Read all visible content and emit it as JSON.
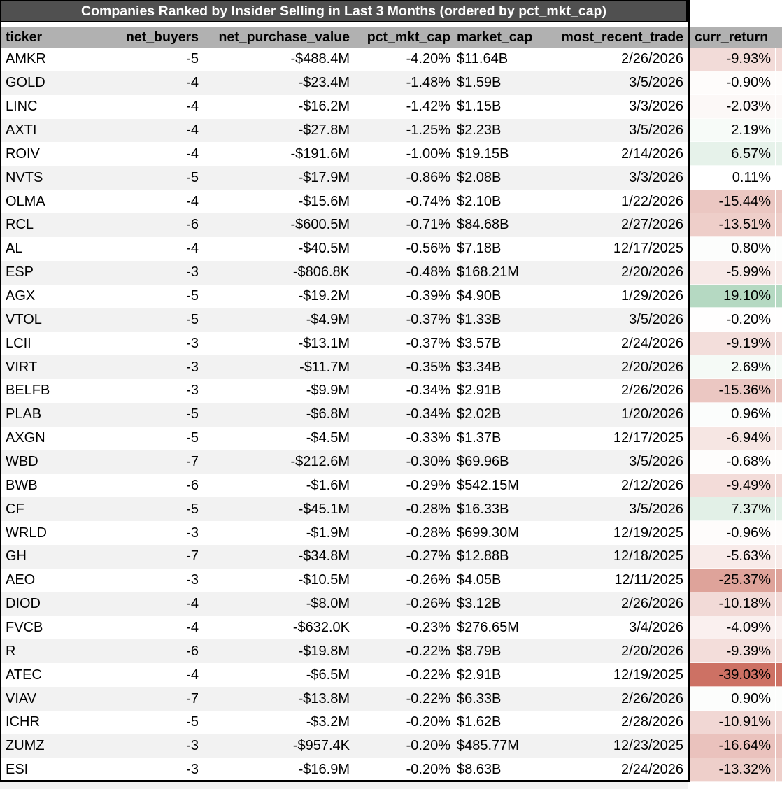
{
  "chart_data": {
    "type": "table",
    "title": "Companies Ranked by Insider Selling in Last 3 Months (ordered by pct_mkt_cap)",
    "columns": [
      {
        "key": "ticker",
        "label": "ticker"
      },
      {
        "key": "net_buyers",
        "label": "net_buyers"
      },
      {
        "key": "net_purchase_value",
        "label": "net_purchase_value"
      },
      {
        "key": "pct_mkt_cap",
        "label": "pct_mkt_cap"
      },
      {
        "key": "market_cap",
        "label": "market_cap"
      },
      {
        "key": "most_recent_trade",
        "label": "most_recent_trade"
      },
      {
        "key": "curr_return",
        "label": "curr_return"
      }
    ],
    "rows": [
      {
        "ticker": "AMKR",
        "net_buyers": "-5",
        "net_purchase_value": "-$488.4M",
        "pct_mkt_cap": "-4.20%",
        "market_cap": "$11.64B",
        "most_recent_trade": "2/26/2026",
        "curr_return": "-9.93%"
      },
      {
        "ticker": "GOLD",
        "net_buyers": "-4",
        "net_purchase_value": "-$23.4M",
        "pct_mkt_cap": "-1.48%",
        "market_cap": "$1.59B",
        "most_recent_trade": "3/5/2026",
        "curr_return": "-0.90%"
      },
      {
        "ticker": "LINC",
        "net_buyers": "-4",
        "net_purchase_value": "-$16.2M",
        "pct_mkt_cap": "-1.42%",
        "market_cap": "$1.15B",
        "most_recent_trade": "3/3/2026",
        "curr_return": "-2.03%"
      },
      {
        "ticker": "AXTI",
        "net_buyers": "-4",
        "net_purchase_value": "-$27.8M",
        "pct_mkt_cap": "-1.25%",
        "market_cap": "$2.23B",
        "most_recent_trade": "3/5/2026",
        "curr_return": "2.19%"
      },
      {
        "ticker": "ROIV",
        "net_buyers": "-4",
        "net_purchase_value": "-$191.6M",
        "pct_mkt_cap": "-1.00%",
        "market_cap": "$19.15B",
        "most_recent_trade": "2/14/2026",
        "curr_return": "6.57%"
      },
      {
        "ticker": "NVTS",
        "net_buyers": "-5",
        "net_purchase_value": "-$17.9M",
        "pct_mkt_cap": "-0.86%",
        "market_cap": "$2.08B",
        "most_recent_trade": "3/3/2026",
        "curr_return": "0.11%"
      },
      {
        "ticker": "OLMA",
        "net_buyers": "-4",
        "net_purchase_value": "-$15.6M",
        "pct_mkt_cap": "-0.74%",
        "market_cap": "$2.10B",
        "most_recent_trade": "1/22/2026",
        "curr_return": "-15.44%"
      },
      {
        "ticker": "RCL",
        "net_buyers": "-6",
        "net_purchase_value": "-$600.5M",
        "pct_mkt_cap": "-0.71%",
        "market_cap": "$84.68B",
        "most_recent_trade": "2/27/2026",
        "curr_return": "-13.51%"
      },
      {
        "ticker": "AL",
        "net_buyers": "-4",
        "net_purchase_value": "-$40.5M",
        "pct_mkt_cap": "-0.56%",
        "market_cap": "$7.18B",
        "most_recent_trade": "12/17/2025",
        "curr_return": "0.80%"
      },
      {
        "ticker": "ESP",
        "net_buyers": "-3",
        "net_purchase_value": "-$806.8K",
        "pct_mkt_cap": "-0.48%",
        "market_cap": "$168.21M",
        "most_recent_trade": "2/20/2026",
        "curr_return": "-5.99%"
      },
      {
        "ticker": "AGX",
        "net_buyers": "-5",
        "net_purchase_value": "-$19.2M",
        "pct_mkt_cap": "-0.39%",
        "market_cap": "$4.90B",
        "most_recent_trade": "1/29/2026",
        "curr_return": "19.10%"
      },
      {
        "ticker": "VTOL",
        "net_buyers": "-5",
        "net_purchase_value": "-$4.9M",
        "pct_mkt_cap": "-0.37%",
        "market_cap": "$1.33B",
        "most_recent_trade": "3/5/2026",
        "curr_return": "-0.20%"
      },
      {
        "ticker": "LCII",
        "net_buyers": "-3",
        "net_purchase_value": "-$13.1M",
        "pct_mkt_cap": "-0.37%",
        "market_cap": "$3.57B",
        "most_recent_trade": "2/24/2026",
        "curr_return": "-9.19%"
      },
      {
        "ticker": "VIRT",
        "net_buyers": "-3",
        "net_purchase_value": "-$11.7M",
        "pct_mkt_cap": "-0.35%",
        "market_cap": "$3.34B",
        "most_recent_trade": "2/20/2026",
        "curr_return": "2.69%"
      },
      {
        "ticker": "BELFB",
        "net_buyers": "-3",
        "net_purchase_value": "-$9.9M",
        "pct_mkt_cap": "-0.34%",
        "market_cap": "$2.91B",
        "most_recent_trade": "2/26/2026",
        "curr_return": "-15.36%"
      },
      {
        "ticker": "PLAB",
        "net_buyers": "-5",
        "net_purchase_value": "-$6.8M",
        "pct_mkt_cap": "-0.34%",
        "market_cap": "$2.02B",
        "most_recent_trade": "1/20/2026",
        "curr_return": "0.96%"
      },
      {
        "ticker": "AXGN",
        "net_buyers": "-5",
        "net_purchase_value": "-$4.5M",
        "pct_mkt_cap": "-0.33%",
        "market_cap": "$1.37B",
        "most_recent_trade": "12/17/2025",
        "curr_return": "-6.94%"
      },
      {
        "ticker": "WBD",
        "net_buyers": "-7",
        "net_purchase_value": "-$212.6M",
        "pct_mkt_cap": "-0.30%",
        "market_cap": "$69.96B",
        "most_recent_trade": "3/5/2026",
        "curr_return": "-0.68%"
      },
      {
        "ticker": "BWB",
        "net_buyers": "-6",
        "net_purchase_value": "-$1.6M",
        "pct_mkt_cap": "-0.29%",
        "market_cap": "$542.15M",
        "most_recent_trade": "2/12/2026",
        "curr_return": "-9.49%"
      },
      {
        "ticker": "CF",
        "net_buyers": "-5",
        "net_purchase_value": "-$45.1M",
        "pct_mkt_cap": "-0.28%",
        "market_cap": "$16.33B",
        "most_recent_trade": "3/5/2026",
        "curr_return": "7.37%"
      },
      {
        "ticker": "WRLD",
        "net_buyers": "-3",
        "net_purchase_value": "-$1.9M",
        "pct_mkt_cap": "-0.28%",
        "market_cap": "$699.30M",
        "most_recent_trade": "12/19/2025",
        "curr_return": "-0.96%"
      },
      {
        "ticker": "GH",
        "net_buyers": "-7",
        "net_purchase_value": "-$34.8M",
        "pct_mkt_cap": "-0.27%",
        "market_cap": "$12.88B",
        "most_recent_trade": "12/18/2025",
        "curr_return": "-5.63%"
      },
      {
        "ticker": "AEO",
        "net_buyers": "-3",
        "net_purchase_value": "-$10.5M",
        "pct_mkt_cap": "-0.26%",
        "market_cap": "$4.05B",
        "most_recent_trade": "12/11/2025",
        "curr_return": "-25.37%"
      },
      {
        "ticker": "DIOD",
        "net_buyers": "-4",
        "net_purchase_value": "-$8.0M",
        "pct_mkt_cap": "-0.26%",
        "market_cap": "$3.12B",
        "most_recent_trade": "2/26/2026",
        "curr_return": "-10.18%"
      },
      {
        "ticker": "FVCB",
        "net_buyers": "-4",
        "net_purchase_value": "-$632.0K",
        "pct_mkt_cap": "-0.23%",
        "market_cap": "$276.65M",
        "most_recent_trade": "3/4/2026",
        "curr_return": "-4.09%"
      },
      {
        "ticker": "R",
        "net_buyers": "-6",
        "net_purchase_value": "-$19.8M",
        "pct_mkt_cap": "-0.22%",
        "market_cap": "$8.79B",
        "most_recent_trade": "2/20/2026",
        "curr_return": "-9.39%"
      },
      {
        "ticker": "ATEC",
        "net_buyers": "-4",
        "net_purchase_value": "-$6.5M",
        "pct_mkt_cap": "-0.22%",
        "market_cap": "$2.91B",
        "most_recent_trade": "12/19/2025",
        "curr_return": "-39.03%"
      },
      {
        "ticker": "VIAV",
        "net_buyers": "-7",
        "net_purchase_value": "-$13.8M",
        "pct_mkt_cap": "-0.22%",
        "market_cap": "$6.33B",
        "most_recent_trade": "2/26/2026",
        "curr_return": "0.90%"
      },
      {
        "ticker": "ICHR",
        "net_buyers": "-5",
        "net_purchase_value": "-$3.2M",
        "pct_mkt_cap": "-0.20%",
        "market_cap": "$1.62B",
        "most_recent_trade": "2/28/2026",
        "curr_return": "-10.91%"
      },
      {
        "ticker": "ZUMZ",
        "net_buyers": "-3",
        "net_purchase_value": "-$957.4K",
        "pct_mkt_cap": "-0.20%",
        "market_cap": "$485.77M",
        "most_recent_trade": "12/23/2025",
        "curr_return": "-16.64%"
      },
      {
        "ticker": "ESI",
        "net_buyers": "-3",
        "net_purchase_value": "-$16.9M",
        "pct_mkt_cap": "-0.20%",
        "market_cap": "$8.63B",
        "most_recent_trade": "2/24/2026",
        "curr_return": "-13.32%"
      }
    ],
    "layout_hints": {
      "sort_order": "ascending by pct_mkt_cap",
      "conditional_format_column": "curr_return"
    },
    "colors": {
      "title_bar_bg": "#505050",
      "title_text": "#ffffff",
      "header_bg": "#b1b1b1",
      "row_stripe": "#f2f2f2",
      "row_plain": "#ffffff",
      "border_black": "#000000",
      "return_positive_max": "#b5d9c2",
      "return_negative_max": "#cd7164",
      "return_neutral": "#ffffff"
    }
  }
}
